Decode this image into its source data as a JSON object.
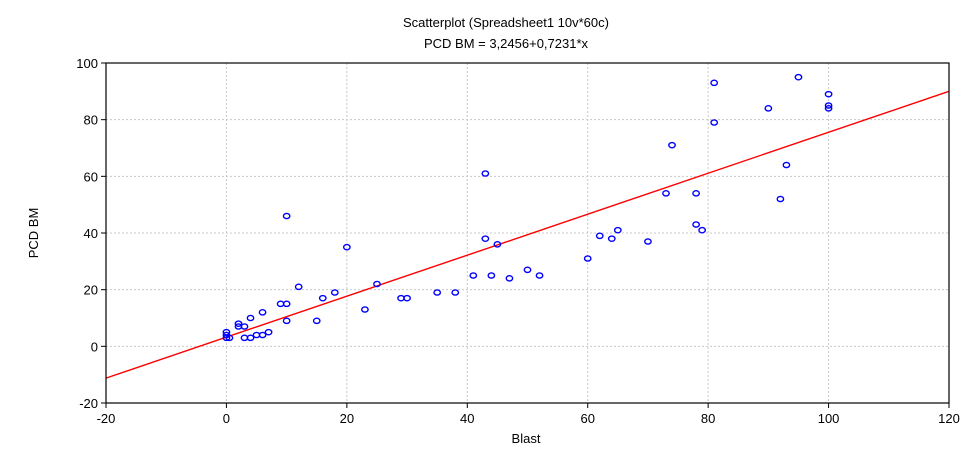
{
  "chart_data": {
    "type": "scatter",
    "title": "Scatterplot (Spreadsheet1 10v*60c)",
    "subtitle": "PCD BM = 3,2456+0,7231*x",
    "xlabel": "Blast",
    "ylabel": "PCD BM",
    "xlim": [
      -20,
      120
    ],
    "ylim": [
      -20,
      100
    ],
    "xticks": [
      -20,
      0,
      20,
      40,
      60,
      80,
      100,
      120
    ],
    "yticks": [
      -20,
      0,
      20,
      40,
      60,
      80,
      100
    ],
    "grid": true,
    "colors": {
      "points": "#0000ff",
      "fit_line": "#ff0000"
    },
    "fit": {
      "intercept": 3.2456,
      "slope": 0.7231
    },
    "points": [
      [
        0,
        3
      ],
      [
        0,
        4
      ],
      [
        0,
        5
      ],
      [
        0.5,
        3
      ],
      [
        2,
        7
      ],
      [
        2,
        8
      ],
      [
        3,
        7
      ],
      [
        3,
        3
      ],
      [
        4,
        10
      ],
      [
        4,
        3
      ],
      [
        5,
        4
      ],
      [
        6,
        12
      ],
      [
        6,
        4
      ],
      [
        7,
        5
      ],
      [
        9,
        15
      ],
      [
        10,
        15
      ],
      [
        10,
        46
      ],
      [
        10,
        9
      ],
      [
        12,
        21
      ],
      [
        15,
        9
      ],
      [
        16,
        17
      ],
      [
        18,
        19
      ],
      [
        20,
        35
      ],
      [
        23,
        13
      ],
      [
        25,
        22
      ],
      [
        29,
        17
      ],
      [
        30,
        17
      ],
      [
        35,
        19
      ],
      [
        38,
        19
      ],
      [
        41,
        25
      ],
      [
        43,
        61
      ],
      [
        43,
        38
      ],
      [
        44,
        25
      ],
      [
        45,
        36
      ],
      [
        47,
        24
      ],
      [
        50,
        27
      ],
      [
        52,
        25
      ],
      [
        60,
        31
      ],
      [
        62,
        39
      ],
      [
        64,
        38
      ],
      [
        65,
        41
      ],
      [
        70,
        37
      ],
      [
        73,
        54
      ],
      [
        74,
        71
      ],
      [
        78,
        54
      ],
      [
        78,
        43
      ],
      [
        79,
        41
      ],
      [
        81,
        93
      ],
      [
        81,
        79
      ],
      [
        90,
        84
      ],
      [
        92,
        52
      ],
      [
        93,
        64
      ],
      [
        95,
        95
      ],
      [
        100,
        89
      ],
      [
        100,
        85
      ],
      [
        100,
        84
      ]
    ]
  }
}
